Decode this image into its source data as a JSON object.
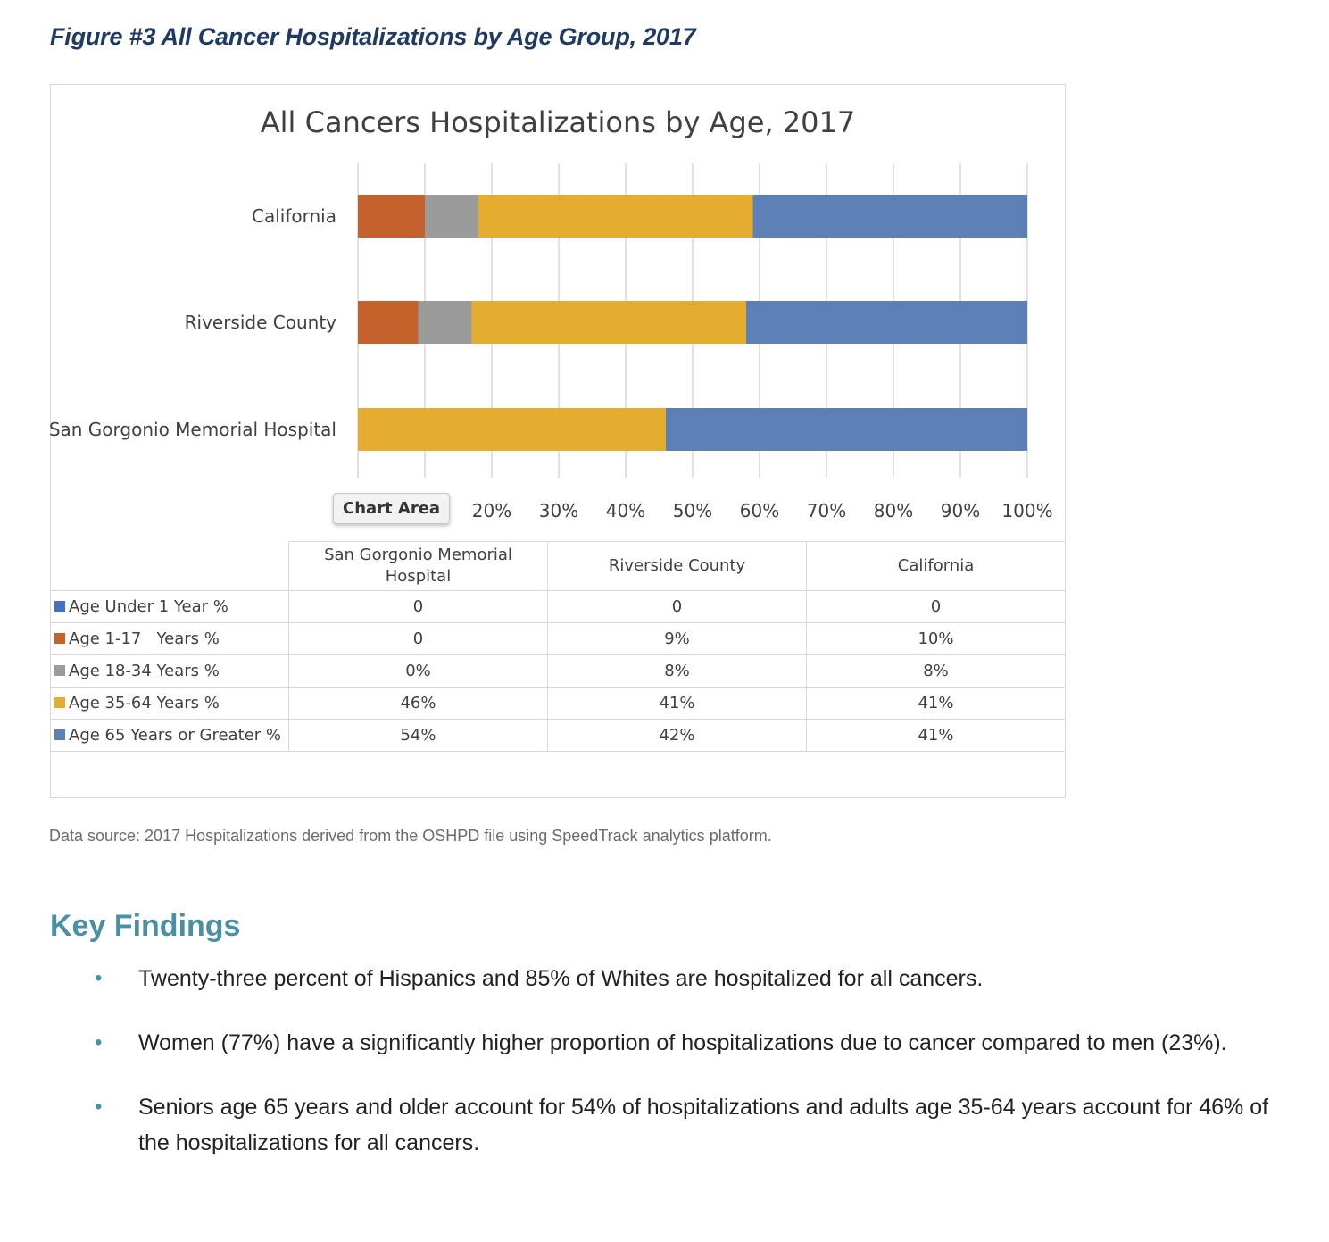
{
  "figure_caption": "Figure #3 All Cancer Hospitalizations by Age Group, 2017",
  "chart_area_tooltip": "Chart Area",
  "colors": {
    "under1": "#4472c4",
    "age1_17": "#c5612a",
    "age18_34": "#9b9b9b",
    "age35_64": "#e5ad30",
    "age65": "#5b80b5",
    "gridline": "#d9d9d9",
    "heading": "#4a8fa3"
  },
  "chart_data": {
    "type": "bar",
    "orientation": "horizontal",
    "stacked": "percent",
    "title": "All Cancers Hospitalizations by Age, 2017",
    "categories": [
      "California",
      "Riverside County",
      "San Gorgonio Memorial Hospital"
    ],
    "x_ticks": [
      "20%",
      "30%",
      "40%",
      "50%",
      "60%",
      "70%",
      "80%",
      "90%",
      "100%"
    ],
    "xlim": [
      0,
      100
    ],
    "grid": true,
    "series": [
      {
        "name": "Age Under 1 Year %",
        "key": "under1",
        "values": [
          0,
          0,
          0
        ]
      },
      {
        "name": "Age 1-17   Years %",
        "key": "age1_17",
        "values": [
          10,
          9,
          0
        ]
      },
      {
        "name": "Age 18-34 Years %",
        "key": "age18_34",
        "values": [
          8,
          8,
          0
        ]
      },
      {
        "name": "Age 35-64 Years %",
        "key": "age35_64",
        "values": [
          41,
          41,
          46
        ]
      },
      {
        "name": "Age 65 Years or Greater %",
        "key": "age65",
        "values": [
          41,
          42,
          54
        ]
      }
    ],
    "table": {
      "column_headers": [
        "San Gorgonio Memorial Hospital",
        "Riverside County",
        "California"
      ],
      "rows": [
        {
          "label": "Age Under 1 Year %",
          "key": "under1",
          "cells": [
            "0",
            "0",
            "0"
          ]
        },
        {
          "label": "Age 1-17   Years %",
          "key": "age1_17",
          "cells": [
            "0",
            "9%",
            "10%"
          ]
        },
        {
          "label": "Age 18-34 Years %",
          "key": "age18_34",
          "cells": [
            "0%",
            "8%",
            "8%"
          ]
        },
        {
          "label": "Age 35-64 Years %",
          "key": "age35_64",
          "cells": [
            "46%",
            "41%",
            "41%"
          ]
        },
        {
          "label": "Age 65 Years or Greater %",
          "key": "age65",
          "cells": [
            "54%",
            "42%",
            "41%"
          ]
        }
      ]
    }
  },
  "source_note": "Data source: 2017 Hospitalizations derived from the OSHPD file using SpeedTrack analytics platform.",
  "key_findings": {
    "heading": "Key Findings",
    "items": [
      "Twenty-three percent of Hispanics and 85% of Whites are hospitalized for all cancers.",
      "Women (77%) have a significantly higher proportion of hospitalizations due to cancer compared to men (23%).",
      "Seniors age 65 years and older account for 54% of hospitalizations and adults age 35-64 years account for 46% of the hospitalizations for all cancers."
    ]
  }
}
